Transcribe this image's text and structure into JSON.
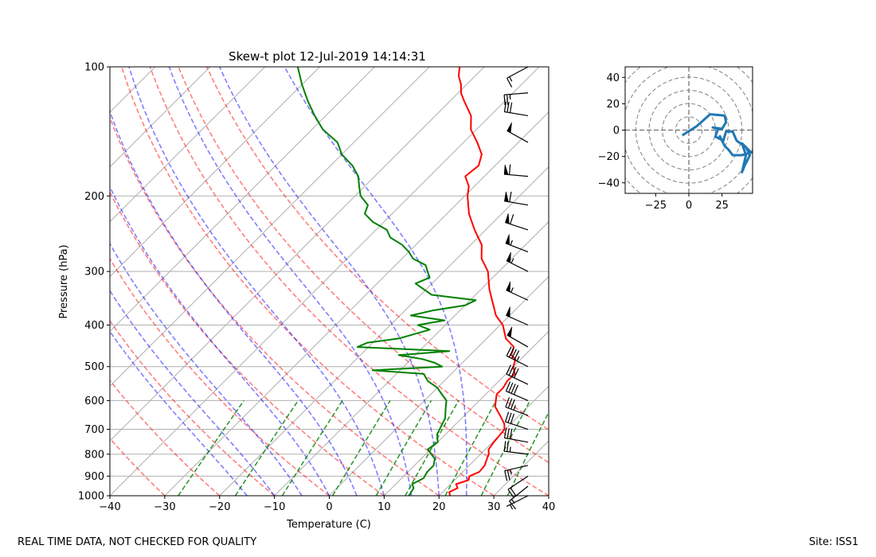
{
  "chart_data": [
    {
      "type": "skew-t",
      "title": "Skew-t plot 12-Jul-2019 14:14:31",
      "xlabel": "Temperature (C)",
      "ylabel": "Pressure (hPa)",
      "xlim": [
        -40,
        40
      ],
      "ylim": [
        1000,
        100
      ],
      "x_ticks": [
        -40,
        -30,
        -20,
        -10,
        0,
        10,
        20,
        30,
        40
      ],
      "y_ticks": [
        1000,
        900,
        800,
        700,
        600,
        500,
        400,
        300,
        200,
        100
      ],
      "isotherms": [
        -120,
        -110,
        -100,
        -90,
        -80,
        -70,
        -60,
        -50,
        -40,
        -30,
        -20,
        -10,
        0,
        10,
        20,
        30,
        40
      ],
      "dry_adiabats_C": [
        -30,
        -20,
        -10,
        0,
        10,
        20,
        30,
        40,
        50,
        60
      ],
      "moist_adiabats_C": [
        -15,
        -10,
        -5,
        0,
        5,
        10,
        15,
        20,
        25
      ],
      "mixing_ratios_gkg": [
        0.4,
        1,
        2,
        4,
        7,
        10,
        16,
        24,
        32
      ],
      "series": [
        {
          "name": "Temperature",
          "color": "#ff0000",
          "points": [
            [
              1000,
              22.0
            ],
            [
              980,
              21.2
            ],
            [
              960,
              22.0
            ],
            [
              940,
              21.0
            ],
            [
              920,
              22.5
            ],
            [
              900,
              22.0
            ],
            [
              880,
              23.0
            ],
            [
              850,
              22.8
            ],
            [
              820,
              22.0
            ],
            [
              800,
              21.5
            ],
            [
              780,
              20.6
            ],
            [
              750,
              20.2
            ],
            [
              720,
              20.0
            ],
            [
              700,
              19.8
            ],
            [
              680,
              18.8
            ],
            [
              650,
              16.5
            ],
            [
              620,
              14.0
            ],
            [
              600,
              13.0
            ],
            [
              580,
              12.0
            ],
            [
              560,
              12.0
            ],
            [
              540,
              11.5
            ],
            [
              520,
              11.6
            ],
            [
              500,
              10.0
            ],
            [
              480,
              9.0
            ],
            [
              470,
              7.5
            ],
            [
              450,
              6.5
            ],
            [
              430,
              3.5
            ],
            [
              400,
              0.5
            ],
            [
              380,
              -2.5
            ],
            [
              350,
              -6.0
            ],
            [
              330,
              -8.5
            ],
            [
              300,
              -12.0
            ],
            [
              280,
              -15.5
            ],
            [
              260,
              -18.0
            ],
            [
              240,
              -22.0
            ],
            [
              220,
              -26.0
            ],
            [
              200,
              -29.5
            ],
            [
              190,
              -31.0
            ],
            [
              180,
              -33.5
            ],
            [
              170,
              -33.0
            ],
            [
              160,
              -34.5
            ],
            [
              150,
              -37.5
            ],
            [
              140,
              -41.0
            ],
            [
              130,
              -43.5
            ],
            [
              120,
              -47.5
            ],
            [
              115,
              -49.5
            ],
            [
              110,
              -51.0
            ],
            [
              105,
              -53.0
            ],
            [
              100,
              -54.5
            ]
          ]
        },
        {
          "name": "Dewpoint",
          "color": "#008000",
          "points": [
            [
              1000,
              14.5
            ],
            [
              960,
              14.0
            ],
            [
              940,
              13.0
            ],
            [
              910,
              14.0
            ],
            [
              880,
              13.5
            ],
            [
              850,
              13.5
            ],
            [
              820,
              12.5
            ],
            [
              800,
              11.0
            ],
            [
              780,
              9.5
            ],
            [
              750,
              10.0
            ],
            [
              720,
              8.5
            ],
            [
              700,
              8.0
            ],
            [
              680,
              7.5
            ],
            [
              660,
              7.0
            ],
            [
              640,
              6.0
            ],
            [
              620,
              5.0
            ],
            [
              600,
              4.0
            ],
            [
              580,
              2.0
            ],
            [
              560,
              0.0
            ],
            [
              540,
              -3.0
            ],
            [
              520,
              -5.0
            ],
            [
              510,
              -15.0
            ],
            [
              500,
              -3.0
            ],
            [
              490,
              -5.0
            ],
            [
              480,
              -8.0
            ],
            [
              470,
              -13.0
            ],
            [
              460,
              -4.5
            ],
            [
              450,
              -22.0
            ],
            [
              440,
              -21.0
            ],
            [
              430,
              -16.0
            ],
            [
              410,
              -12.0
            ],
            [
              400,
              -15.0
            ],
            [
              390,
              -11.0
            ],
            [
              380,
              -18.0
            ],
            [
              370,
              -15.0
            ],
            [
              360,
              -10.0
            ],
            [
              350,
              -9.0
            ],
            [
              340,
              -18.0
            ],
            [
              320,
              -23.0
            ],
            [
              310,
              -21.5
            ],
            [
              300,
              -23.0
            ],
            [
              290,
              -24.5
            ],
            [
              280,
              -28.0
            ],
            [
              270,
              -30.0
            ],
            [
              260,
              -32.5
            ],
            [
              250,
              -36.0
            ],
            [
              240,
              -38.0
            ],
            [
              230,
              -42.0
            ],
            [
              220,
              -45.0
            ],
            [
              210,
              -46.0
            ],
            [
              200,
              -49.0
            ],
            [
              190,
              -51.0
            ],
            [
              180,
              -53.0
            ],
            [
              170,
              -56.0
            ],
            [
              160,
              -60.0
            ],
            [
              150,
              -63.0
            ],
            [
              140,
              -68.0
            ],
            [
              130,
              -72.0
            ],
            [
              120,
              -76.0
            ],
            [
              110,
              -80.0
            ],
            [
              100,
              -84.0
            ]
          ]
        }
      ],
      "wind_barbs": [
        {
          "p": 1000,
          "u": 6,
          "v": 3
        },
        {
          "p": 950,
          "u": 10,
          "v": 8
        },
        {
          "p": 900,
          "u": 15,
          "v": 10
        },
        {
          "p": 850,
          "u": 22,
          "v": 5
        },
        {
          "p": 800,
          "u": 25,
          "v": -3
        },
        {
          "p": 750,
          "u": 28,
          "v": -5
        },
        {
          "p": 700,
          "u": 30,
          "v": -10
        },
        {
          "p": 650,
          "u": 32,
          "v": -12
        },
        {
          "p": 600,
          "u": 35,
          "v": -15
        },
        {
          "p": 550,
          "u": 38,
          "v": -18
        },
        {
          "p": 500,
          "u": 40,
          "v": -20
        },
        {
          "p": 450,
          "u": 42,
          "v": -24
        },
        {
          "p": 400,
          "u": 45,
          "v": -20
        },
        {
          "p": 350,
          "u": 48,
          "v": -22
        },
        {
          "p": 300,
          "u": 50,
          "v": -25
        },
        {
          "p": 270,
          "u": 52,
          "v": -20
        },
        {
          "p": 240,
          "u": 55,
          "v": -18
        },
        {
          "p": 210,
          "u": 60,
          "v": -10
        },
        {
          "p": 180,
          "u": 58,
          "v": -5
        },
        {
          "p": 150,
          "u": 45,
          "v": -25
        },
        {
          "p": 130,
          "u": 30,
          "v": -5
        },
        {
          "p": 115,
          "u": 25,
          "v": 2
        },
        {
          "p": 100,
          "u": 15,
          "v": 8
        }
      ]
    },
    {
      "type": "hodograph",
      "xlim": [
        -48,
        48
      ],
      "ylim": [
        -48,
        48
      ],
      "x_ticks": [
        -25,
        0,
        25
      ],
      "y_ticks": [
        40,
        20,
        0,
        -20,
        -40
      ],
      "rings": [
        10,
        20,
        30,
        40,
        50,
        60
      ],
      "series": [
        {
          "name": "wind",
          "color": "#1f77b4",
          "points": [
            [
              -5,
              -4
            ],
            [
              6,
              3
            ],
            [
              16,
              12
            ],
            [
              27,
              11
            ],
            [
              28,
              6
            ],
            [
              25,
              1
            ],
            [
              18,
              2
            ],
            [
              22,
              1
            ],
            [
              20,
              -5
            ],
            [
              22,
              -6
            ],
            [
              26,
              -8
            ],
            [
              28,
              -1
            ],
            [
              33,
              -1
            ],
            [
              36,
              -8
            ],
            [
              43,
              -13
            ],
            [
              46,
              -19
            ],
            [
              42,
              -27
            ],
            [
              40,
              -32
            ],
            [
              43,
              -19
            ],
            [
              40,
              -10
            ],
            [
              47,
              -17
            ],
            [
              40,
              -19
            ],
            [
              33,
              -19
            ],
            [
              30,
              -15
            ],
            [
              27,
              -12
            ],
            [
              23,
              -4
            ]
          ]
        }
      ]
    }
  ],
  "footer": {
    "left_note": "REAL TIME DATA, NOT CHECKED FOR QUALITY",
    "site_label": "Site: ISS1"
  }
}
